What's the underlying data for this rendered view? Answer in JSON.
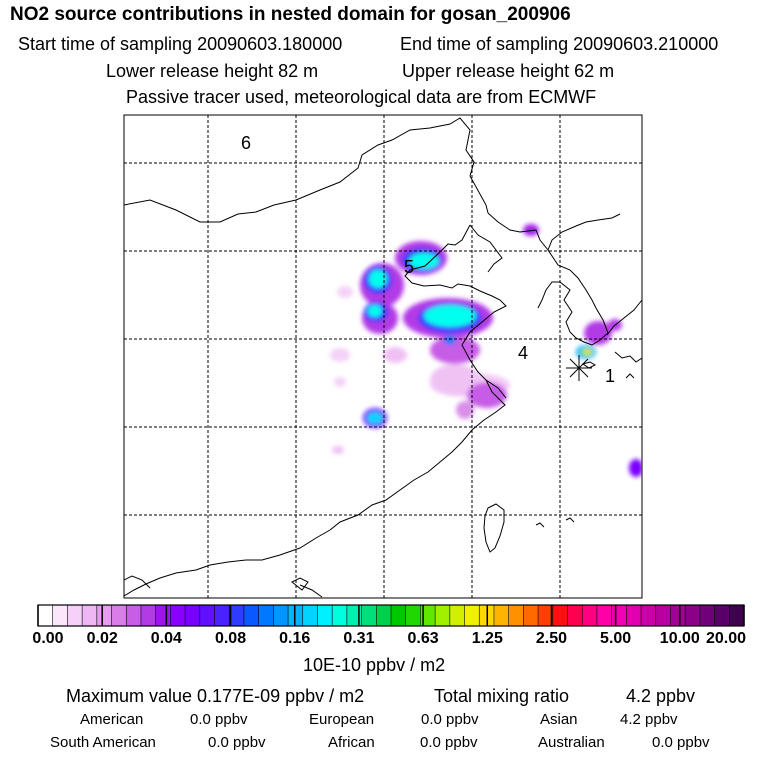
{
  "header": {
    "title": "NO2 source contributions in nested domain for gosan_200906",
    "start_label": "Start time of sampling 20090603.180000",
    "end_label": "End time of sampling 20090603.210000",
    "lower_label": "Lower release height   82 m",
    "upper_label": "Upper release height   62 m",
    "tracer_note": "Passive tracer used, meteorological data are from ECMWF"
  },
  "map": {
    "region_labels": [
      "6",
      "5",
      "4",
      "1"
    ],
    "receptor_marker": "asterisk-icon"
  },
  "colorbar": {
    "ticks": [
      "0.00",
      "0.02",
      "0.04",
      "0.08",
      "0.16",
      "0.31",
      "0.63",
      "1.25",
      "2.50",
      "5.00",
      "10.00",
      "20.00"
    ],
    "colors": [
      "#ffffff",
      "#fbe6fb",
      "#f6d0f8",
      "#efb8f4",
      "#e79cf0",
      "#d97ee9",
      "#c85de6",
      "#b23be6",
      "#9a16f0",
      "#8a00ff",
      "#7a00ff",
      "#6010ff",
      "#4a22ff",
      "#2d3cff",
      "#0a58ff",
      "#0078ff",
      "#0096ff",
      "#00b4ff",
      "#00d4ff",
      "#00f0ff",
      "#00ffdd",
      "#00f0b0",
      "#00e07a",
      "#00d04a",
      "#00c800",
      "#20d800",
      "#60e800",
      "#a0f000",
      "#d0f000",
      "#f0f000",
      "#ffd800",
      "#ffb400",
      "#ff9000",
      "#ff6a00",
      "#ff4000",
      "#ff1010",
      "#ff0050",
      "#ff0080",
      "#ff00a8",
      "#f000b0",
      "#e000b0",
      "#cc00a8",
      "#b800a0",
      "#a20094",
      "#8a0088",
      "#70007a",
      "#580068",
      "#400050"
    ],
    "unit_label": "10E-10 ppbv / m2"
  },
  "stats": {
    "maximum": "Maximum value  0.177E-09 ppbv / m2",
    "total_label": "Total mixing ratio",
    "total_value": "4.2 ppbv",
    "american": "American",
    "american_value": "0.0 ppbv",
    "european": "European",
    "european_value": "0.0 ppbv",
    "asian": "Asian",
    "asian_value": "4.2 ppbv",
    "south_american": "South American",
    "south_american_value": "0.0 ppbv",
    "african": "African",
    "african_value": "0.0 ppbv",
    "australian": "Australian",
    "australian_value": "0.0 ppbv"
  }
}
